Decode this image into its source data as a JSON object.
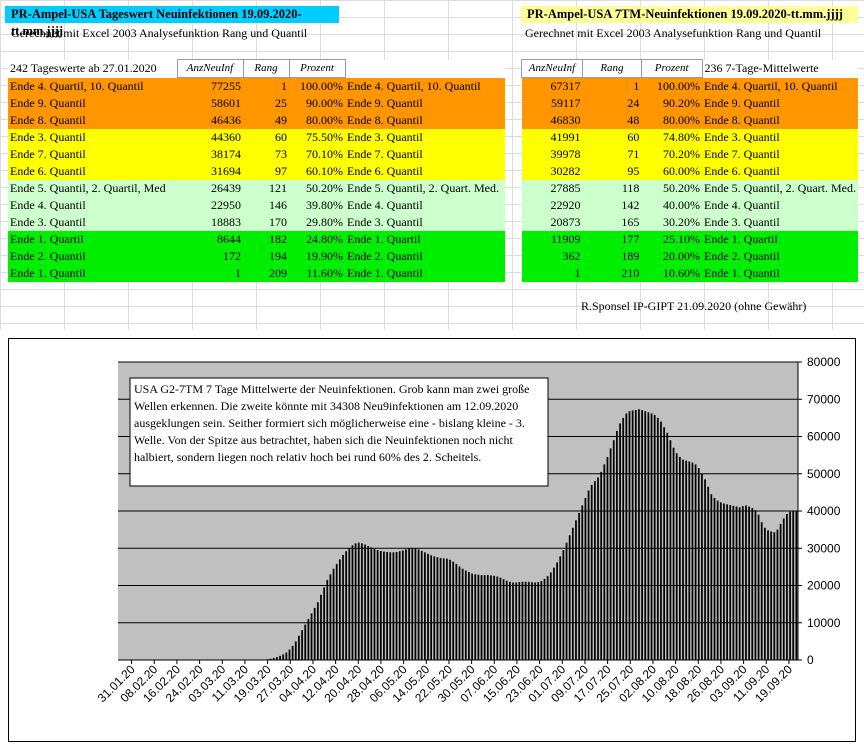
{
  "left": {
    "title": "PR-Ampel-USA Tageswert Neuinfektionen 19.09.2020-tt.mm.jjjj",
    "subtitle": "Gerechnet mit Excel 2003 Analysefunktion Rang und Quantil",
    "caption": "242 Tageswerte ab 27.01.2020",
    "headers": [
      "AnzNeuInf",
      "Rang",
      "Prozent"
    ],
    "rows": [
      {
        "label": "Ende 4. Quartil, 10. Quantil",
        "value": "77255",
        "rank": "1",
        "pct": "100.00%",
        "label2": "Ende 4. Quartil, 10. Quantil",
        "color": "or"
      },
      {
        "label": "Ende 9. Quantil",
        "value": "58601",
        "rank": "25",
        "pct": "90.00%",
        "label2": "Ende 9. Quantil",
        "color": "or"
      },
      {
        "label": "Ende 8. Quantil",
        "value": "46436",
        "rank": "49",
        "pct": "80.00%",
        "label2": "Ende 8. Quantil",
        "color": "or"
      },
      {
        "label": "Ende 3. Quantil",
        "value": "44360",
        "rank": "60",
        "pct": "75.50%",
        "label2": "Ende 3. Quantil",
        "color": "ye"
      },
      {
        "label": "Ende 7. Quantil",
        "value": "38174",
        "rank": "73",
        "pct": "70.10%",
        "label2": "Ende 7. Quantil",
        "color": "ye"
      },
      {
        "label": "Ende 6. Quantil",
        "value": "31694",
        "rank": "97",
        "pct": "60.10%",
        "label2": "Ende 6. Quantil",
        "color": "ye"
      },
      {
        "label": "Ende 5. Quantil, 2. Quartil, Med",
        "value": "26439",
        "rank": "121",
        "pct": "50.20%",
        "label2": "Ende 5. Quantil, 2. Quart. Med.",
        "color": "lg"
      },
      {
        "label": "Ende 4. Quantil",
        "value": "22950",
        "rank": "146",
        "pct": "39.80%",
        "label2": "Ende 4. Quantil",
        "color": "lg"
      },
      {
        "label": "Ende 3. Quantil",
        "value": "18883",
        "rank": "170",
        "pct": "29.80%",
        "label2": "Ende 3. Quantil",
        "color": "lg"
      },
      {
        "label": "Ende 1. Quartil",
        "value": "8644",
        "rank": "182",
        "pct": "24.80%",
        "label2": "Ende 1. Quartil",
        "color": "gr"
      },
      {
        "label": "Ende 2. Quantil",
        "value": "172",
        "rank": "194",
        "pct": "19.90%",
        "label2": "Ende 2. Quantil",
        "color": "gr"
      },
      {
        "label": "Ende 1. Quantil",
        "value": "1",
        "rank": "209",
        "pct": "11.60%",
        "label2": "Ende 1. Quantil",
        "color": "gr"
      }
    ]
  },
  "right": {
    "title": "PR-Ampel-USA 7TM-Neuinfektionen 19.09.2020-tt.mm.jjjj",
    "subtitle": "Gerechnet mit Excel 2003 Analysefunktion Rang und Quantil",
    "caption": "236  7-Tage-Mittelwerte",
    "headers": [
      "AnzNeuInf",
      "Rang",
      "Prozent"
    ],
    "rows": [
      {
        "value": "67317",
        "rank": "1",
        "pct": "100.00%",
        "label": "Ende 4. Quartil, 10. Quantil",
        "color": "or"
      },
      {
        "value": "59117",
        "rank": "24",
        "pct": "90.20%",
        "label": "Ende 9. Quantil",
        "color": "or"
      },
      {
        "value": "46830",
        "rank": "48",
        "pct": "80.00%",
        "label": "Ende 8. Quantil",
        "color": "or"
      },
      {
        "value": "41991",
        "rank": "60",
        "pct": "74.80%",
        "label": "Ende 3. Quantil",
        "color": "ye"
      },
      {
        "value": "39978",
        "rank": "71",
        "pct": "70.20%",
        "label": "Ende 7. Quantil",
        "color": "ye"
      },
      {
        "value": "30282",
        "rank": "95",
        "pct": "60.00%",
        "label": "Ende 6. Quantil",
        "color": "ye"
      },
      {
        "value": "27885",
        "rank": "118",
        "pct": "50.20%",
        "label": "Ende 5. Quantil, 2. Quart. Med.",
        "color": "lg"
      },
      {
        "value": "22920",
        "rank": "142",
        "pct": "40.00%",
        "label": "Ende 4. Quantil",
        "color": "lg"
      },
      {
        "value": "20873",
        "rank": "165",
        "pct": "30.20%",
        "label": "Ende 3. Quantil",
        "color": "lg"
      },
      {
        "value": "11909",
        "rank": "177",
        "pct": "25.10%",
        "label": "Ende 1. Quartil",
        "color": "gr"
      },
      {
        "value": "362",
        "rank": "189",
        "pct": "20.00%",
        "label": "Ende 2. Quantil",
        "color": "gr"
      },
      {
        "value": "1",
        "rank": "210",
        "pct": "10.60%",
        "label": "Ende 1. Quantil",
        "color": "gr"
      }
    ]
  },
  "note": "R.Sponsel IP-GIPT 21.09.2020 (ohne Gewähr)",
  "colors": {
    "or": "#ff9600",
    "ye": "#ffff00",
    "lg": "#ccffcc",
    "gr": "#00ee00",
    "title_left": "#00ccff",
    "title_right": "#ffff99",
    "plot_bg": "#c0c0c0"
  },
  "chart_data": {
    "type": "bar",
    "annotation": "USA G2-7TM   7 Tage Mittelwerte der Neuinfektionen. Grob kann man zwei große Wellen erkennen. Die zweite könnte mit 34308 Neu9infektionen am 12.09.2020 ausgeklungen sein. Seither formiert sich möglicherweise eine - bislang kleine - 3. Welle. Von der Spitze aus betrachtet, haben sich die Neuinfektionen noch nicht halbiert, sondern liegen noch relativ hoch bei rund 60% des 2. Scheitels.",
    "ylim": [
      0,
      80000
    ],
    "yticks": [
      0,
      10000,
      20000,
      30000,
      40000,
      50000,
      60000,
      70000,
      80000
    ],
    "xtick_labels": [
      "31.01.20",
      "08.02.20",
      "16.02.20",
      "24.02.20",
      "03.03.20",
      "11.03.20",
      "19.03.20",
      "27.03.20",
      "04.04.20",
      "12.04.20",
      "20.04.20",
      "28.04.20",
      "06.05.20",
      "14.05.20",
      "22.05.20",
      "30.05.20",
      "07.06.20",
      "15.06.20",
      "23.06.20",
      "01.07.20",
      "09.07.20",
      "17.07.20",
      "25.07.20",
      "02.08.20",
      "10.08.20",
      "18.08.20",
      "26.08.20",
      "03.09.20",
      "11.09.20",
      "19.09.20"
    ],
    "x_start": "2020-01-31",
    "x_end": "2020-09-19",
    "series": [
      {
        "values": [
          0,
          0,
          0,
          0,
          0,
          0,
          0,
          0,
          0,
          0,
          0,
          0,
          0,
          0,
          0,
          0,
          0,
          0,
          0,
          0,
          0,
          0,
          0,
          0,
          0,
          0,
          0,
          0,
          0,
          0,
          0,
          0,
          0,
          0,
          0,
          0,
          0,
          0,
          0,
          0,
          0,
          5,
          10,
          20,
          40,
          70,
          120,
          200,
          350,
          550,
          800,
          1100,
          1500,
          2000,
          2800,
          3800,
          5000,
          6500,
          8000,
          9500,
          11000,
          12500,
          14000,
          15500,
          17500,
          19500,
          21500,
          23000,
          24500,
          25800,
          27000,
          28200,
          29200,
          30000,
          30800,
          31300,
          31500,
          31300,
          31000,
          30600,
          30200,
          29800,
          29500,
          29300,
          29100,
          29000,
          28900,
          28900,
          29000,
          29200,
          29400,
          29700,
          29900,
          30000,
          29900,
          29700,
          29300,
          28900,
          28500,
          28100,
          27800,
          27600,
          27400,
          27300,
          27200,
          26900,
          26400,
          25800,
          25100,
          24500,
          24000,
          23600,
          23200,
          23000,
          22900,
          22800,
          22800,
          22800,
          22700,
          22600,
          22400,
          22100,
          21700,
          21300,
          21000,
          20800,
          20800,
          20900,
          21000,
          21000,
          21000,
          20900,
          20800,
          20900,
          21200,
          21800,
          22500,
          23500,
          24800,
          26200,
          27800,
          29500,
          31500,
          33500,
          35500,
          37500,
          39500,
          41500,
          43500,
          45500,
          47000,
          48000,
          49000,
          50500,
          52500,
          54500,
          56800,
          59000,
          61500,
          63500,
          65000,
          66200,
          66800,
          67000,
          67100,
          67317,
          67100,
          66800,
          66500,
          66200,
          65800,
          65000,
          64000,
          62500,
          61000,
          59000,
          57000,
          55500,
          54500,
          53800,
          53500,
          53300,
          53000,
          52500,
          51500,
          50000,
          48500,
          46500,
          44500,
          43500,
          42800,
          42300,
          42000,
          41800,
          41600,
          41400,
          41200,
          41000,
          41300,
          41500,
          41200,
          40800,
          40200,
          39000,
          37000,
          35500,
          34800,
          34500,
          34308,
          35000,
          36500,
          38000,
          39200,
          39800,
          40000,
          39900
        ]
      }
    ]
  }
}
